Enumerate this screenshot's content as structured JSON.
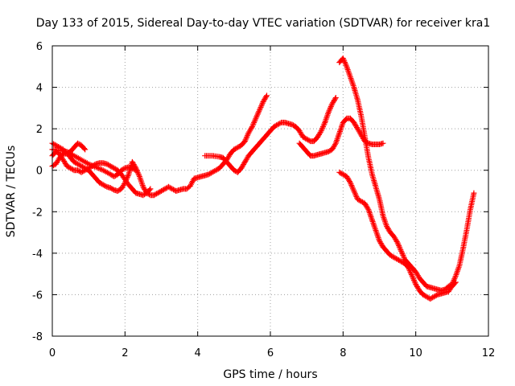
{
  "chart_data": {
    "type": "scatter",
    "title": "Day 133 of 2015, Sidereal Day-to-day VTEC variation (SDTVAR) for receiver kra1",
    "xlabel": "GPS time / hours",
    "ylabel": "SDTVAR / TECUs",
    "xlim": [
      0,
      12
    ],
    "ylim": [
      -8,
      6
    ],
    "xticks": [
      "0",
      "2",
      "4",
      "6",
      "8",
      "10",
      "12"
    ],
    "yticks": [
      "-8",
      "-6",
      "-4",
      "-2",
      "0",
      "2",
      "4",
      "6"
    ],
    "grid": true,
    "marker": "+",
    "series": [
      {
        "name": "SDTVAR",
        "color": "#ff0000",
        "segments": [
          [
            [
              0.0,
              1.3
            ],
            [
              0.1,
              1.2
            ],
            [
              0.2,
              1.1
            ],
            [
              0.3,
              1.0
            ],
            [
              0.4,
              0.85
            ],
            [
              0.5,
              0.6
            ],
            [
              0.6,
              0.4
            ],
            [
              0.7,
              0.3
            ],
            [
              0.8,
              0.2
            ],
            [
              0.9,
              0.1
            ],
            [
              1.0,
              0.0
            ],
            [
              1.1,
              -0.2
            ],
            [
              1.2,
              -0.4
            ],
            [
              1.3,
              -0.6
            ],
            [
              1.4,
              -0.7
            ],
            [
              1.5,
              -0.8
            ],
            [
              1.6,
              -0.85
            ],
            [
              1.7,
              -0.95
            ],
            [
              1.8,
              -1.0
            ],
            [
              1.9,
              -0.9
            ],
            [
              2.0,
              -0.6
            ],
            [
              2.1,
              -0.2
            ],
            [
              2.2,
              0.4
            ],
            [
              2.3,
              0.1
            ],
            [
              2.4,
              -0.3
            ],
            [
              2.5,
              -0.8
            ],
            [
              2.6,
              -1.1
            ],
            [
              2.7,
              -1.2
            ],
            [
              2.8,
              -1.2
            ],
            [
              2.9,
              -1.1
            ],
            [
              3.0,
              -1.0
            ],
            [
              3.1,
              -0.9
            ],
            [
              3.2,
              -0.8
            ],
            [
              3.3,
              -0.9
            ],
            [
              3.4,
              -1.0
            ],
            [
              3.5,
              -0.95
            ],
            [
              3.6,
              -0.9
            ],
            [
              3.7,
              -0.9
            ],
            [
              3.8,
              -0.75
            ],
            [
              3.9,
              -0.4
            ],
            [
              4.0,
              -0.35
            ],
            [
              4.1,
              -0.3
            ],
            [
              4.2,
              -0.25
            ],
            [
              4.3,
              -0.2
            ],
            [
              4.4,
              -0.1
            ],
            [
              4.5,
              0.0
            ],
            [
              4.6,
              0.1
            ],
            [
              4.7,
              0.3
            ],
            [
              4.8,
              0.5
            ],
            [
              4.9,
              0.8
            ],
            [
              5.0,
              1.0
            ],
            [
              5.1,
              1.1
            ],
            [
              5.2,
              1.2
            ],
            [
              5.3,
              1.4
            ],
            [
              5.4,
              1.8
            ],
            [
              5.5,
              2.1
            ],
            [
              5.6,
              2.5
            ],
            [
              5.7,
              2.9
            ],
            [
              5.8,
              3.3
            ],
            [
              5.9,
              3.6
            ]
          ],
          [
            [
              0.0,
              0.2
            ],
            [
              0.1,
              0.3
            ],
            [
              0.2,
              0.6
            ],
            [
              0.3,
              0.8
            ],
            [
              0.4,
              0.8
            ],
            [
              0.5,
              0.9
            ],
            [
              0.6,
              1.1
            ],
            [
              0.7,
              1.3
            ],
            [
              0.8,
              1.2
            ],
            [
              0.9,
              1.0
            ]
          ],
          [
            [
              0.0,
              0.7
            ],
            [
              0.1,
              0.9
            ],
            [
              0.2,
              0.8
            ],
            [
              0.3,
              0.5
            ],
            [
              0.4,
              0.2
            ],
            [
              0.5,
              0.1
            ],
            [
              0.6,
              0.0
            ],
            [
              0.7,
              0.0
            ],
            [
              0.8,
              -0.1
            ],
            [
              0.9,
              0.0
            ],
            [
              1.0,
              0.1
            ],
            [
              1.1,
              0.2
            ],
            [
              1.2,
              0.3
            ],
            [
              1.3,
              0.35
            ],
            [
              1.4,
              0.35
            ],
            [
              1.5,
              0.3
            ],
            [
              1.6,
              0.2
            ],
            [
              1.7,
              0.1
            ],
            [
              1.8,
              0.0
            ],
            [
              1.9,
              -0.2
            ],
            [
              2.0,
              -0.45
            ],
            [
              2.1,
              -0.7
            ],
            [
              2.2,
              -0.9
            ],
            [
              2.3,
              -1.1
            ],
            [
              2.4,
              -1.15
            ],
            [
              2.5,
              -1.2
            ],
            [
              2.6,
              -1.1
            ],
            [
              2.7,
              -0.9
            ]
          ],
          [
            [
              0.0,
              1.0
            ],
            [
              0.2,
              0.95
            ],
            [
              0.4,
              0.9
            ],
            [
              0.6,
              0.7
            ],
            [
              0.8,
              0.5
            ],
            [
              1.0,
              0.3
            ],
            [
              1.2,
              0.15
            ],
            [
              1.4,
              0.0
            ],
            [
              1.6,
              -0.2
            ],
            [
              1.7,
              -0.3
            ],
            [
              1.8,
              -0.2
            ],
            [
              1.9,
              0.0
            ],
            [
              2.0,
              0.1
            ],
            [
              2.1,
              0.15
            ],
            [
              2.2,
              0.1
            ],
            [
              2.3,
              0.0
            ]
          ],
          [
            [
              4.2,
              0.7
            ],
            [
              4.4,
              0.7
            ],
            [
              4.6,
              0.65
            ],
            [
              4.7,
              0.6
            ],
            [
              4.8,
              0.4
            ],
            [
              4.9,
              0.2
            ],
            [
              5.0,
              0.0
            ],
            [
              5.1,
              -0.1
            ],
            [
              5.2,
              0.1
            ],
            [
              5.3,
              0.4
            ],
            [
              5.4,
              0.7
            ],
            [
              5.5,
              0.9
            ],
            [
              5.6,
              1.1
            ],
            [
              5.7,
              1.3
            ],
            [
              5.8,
              1.5
            ],
            [
              5.9,
              1.7
            ],
            [
              6.0,
              1.9
            ],
            [
              6.1,
              2.1
            ],
            [
              6.2,
              2.2
            ],
            [
              6.3,
              2.3
            ],
            [
              6.4,
              2.3
            ],
            [
              6.5,
              2.25
            ],
            [
              6.6,
              2.2
            ],
            [
              6.7,
              2.1
            ],
            [
              6.8,
              1.9
            ],
            [
              6.9,
              1.6
            ],
            [
              7.0,
              1.5
            ],
            [
              7.1,
              1.4
            ],
            [
              7.2,
              1.4
            ],
            [
              7.3,
              1.6
            ],
            [
              7.4,
              1.9
            ],
            [
              7.5,
              2.3
            ],
            [
              7.6,
              2.8
            ],
            [
              7.7,
              3.2
            ],
            [
              7.8,
              3.5
            ]
          ],
          [
            [
              6.8,
              1.3
            ],
            [
              6.9,
              1.1
            ],
            [
              7.0,
              0.9
            ],
            [
              7.1,
              0.7
            ],
            [
              7.2,
              0.7
            ],
            [
              7.3,
              0.75
            ],
            [
              7.4,
              0.8
            ],
            [
              7.5,
              0.85
            ],
            [
              7.6,
              0.9
            ],
            [
              7.7,
              1.0
            ],
            [
              7.8,
              1.3
            ],
            [
              7.9,
              1.8
            ],
            [
              8.0,
              2.3
            ],
            [
              8.1,
              2.5
            ],
            [
              8.2,
              2.5
            ],
            [
              8.3,
              2.3
            ],
            [
              8.4,
              2.0
            ],
            [
              8.5,
              1.7
            ],
            [
              8.6,
              1.4
            ],
            [
              8.7,
              1.3
            ],
            [
              8.8,
              1.25
            ],
            [
              8.9,
              1.25
            ],
            [
              9.0,
              1.25
            ],
            [
              9.1,
              1.3
            ]
          ],
          [
            [
              7.9,
              5.2
            ],
            [
              8.0,
              5.4
            ],
            [
              8.1,
              5.0
            ],
            [
              8.2,
              4.5
            ],
            [
              8.3,
              4.0
            ],
            [
              8.4,
              3.4
            ],
            [
              8.5,
              2.6
            ],
            [
              8.6,
              1.6
            ],
            [
              8.7,
              0.6
            ],
            [
              8.8,
              -0.2
            ],
            [
              8.9,
              -0.8
            ],
            [
              9.0,
              -1.4
            ],
            [
              9.1,
              -2.2
            ],
            [
              9.2,
              -2.7
            ],
            [
              9.3,
              -3.0
            ],
            [
              9.4,
              -3.2
            ],
            [
              9.5,
              -3.5
            ],
            [
              9.6,
              -3.9
            ],
            [
              9.7,
              -4.3
            ],
            [
              9.8,
              -4.5
            ],
            [
              9.9,
              -4.7
            ],
            [
              10.0,
              -4.9
            ],
            [
              10.1,
              -5.2
            ],
            [
              10.2,
              -5.4
            ],
            [
              10.3,
              -5.6
            ],
            [
              10.4,
              -5.65
            ],
            [
              10.5,
              -5.7
            ],
            [
              10.6,
              -5.75
            ],
            [
              10.7,
              -5.8
            ],
            [
              10.8,
              -5.75
            ],
            [
              10.9,
              -5.6
            ],
            [
              11.0,
              -5.5
            ],
            [
              11.1,
              -5.1
            ],
            [
              11.2,
              -4.6
            ],
            [
              11.3,
              -3.8
            ],
            [
              11.4,
              -2.9
            ],
            [
              11.5,
              -1.9
            ],
            [
              11.6,
              -1.1
            ]
          ],
          [
            [
              7.9,
              -0.1
            ],
            [
              8.0,
              -0.2
            ],
            [
              8.1,
              -0.3
            ],
            [
              8.2,
              -0.6
            ],
            [
              8.3,
              -1.0
            ],
            [
              8.4,
              -1.4
            ],
            [
              8.5,
              -1.5
            ],
            [
              8.6,
              -1.6
            ],
            [
              8.7,
              -1.9
            ],
            [
              8.8,
              -2.4
            ],
            [
              8.9,
              -2.9
            ],
            [
              9.0,
              -3.4
            ],
            [
              9.1,
              -3.7
            ],
            [
              9.2,
              -3.9
            ],
            [
              9.3,
              -4.1
            ],
            [
              9.4,
              -4.2
            ],
            [
              9.5,
              -4.3
            ],
            [
              9.6,
              -4.4
            ],
            [
              9.7,
              -4.5
            ],
            [
              9.8,
              -4.7
            ],
            [
              9.9,
              -5.1
            ],
            [
              10.0,
              -5.5
            ],
            [
              10.1,
              -5.8
            ],
            [
              10.2,
              -6.0
            ],
            [
              10.3,
              -6.1
            ],
            [
              10.4,
              -6.2
            ],
            [
              10.5,
              -6.1
            ],
            [
              10.6,
              -6.0
            ],
            [
              10.7,
              -5.95
            ],
            [
              10.8,
              -5.9
            ],
            [
              10.9,
              -5.85
            ],
            [
              11.0,
              -5.6
            ],
            [
              11.1,
              -5.4
            ]
          ]
        ]
      }
    ]
  }
}
